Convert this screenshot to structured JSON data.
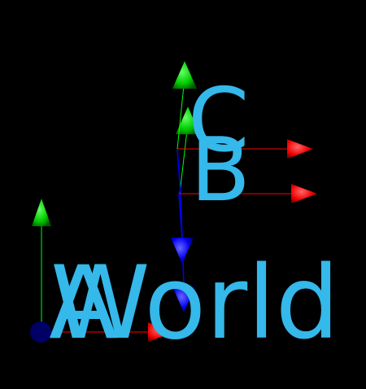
{
  "scene": {
    "background": "#000000",
    "label_color": "#35b8ea",
    "axis_colors": {
      "x": "#ff0000",
      "y": "#00ff00",
      "z": "#0000ff"
    },
    "frames": [
      {
        "id": "world",
        "label": "World"
      },
      {
        "id": "a",
        "label": "A"
      },
      {
        "id": "b",
        "label": "B"
      },
      {
        "id": "c",
        "label": "C"
      }
    ],
    "origin_marker": {
      "color": "#000066"
    }
  }
}
